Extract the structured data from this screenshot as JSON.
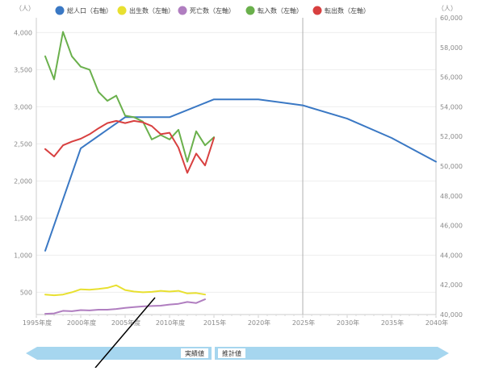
{
  "chart_data": {
    "type": "line",
    "left_axis": {
      "unit": "（人）",
      "ylim": [
        200,
        4200
      ],
      "ticks": [
        "500",
        "1,000",
        "1,500",
        "2,000",
        "2,500",
        "3,000",
        "3,500",
        "4,000"
      ]
    },
    "right_axis": {
      "unit": "（人）",
      "ylim": [
        40000,
        60000
      ],
      "ticks": [
        "40,000",
        "42,000",
        "44,000",
        "46,000",
        "48,000",
        "50,000",
        "52,000",
        "54,000",
        "56,000",
        "58,000",
        "60,000"
      ]
    },
    "x_axis": {
      "range": [
        1995,
        2040
      ],
      "ticks": [
        {
          "year": 1995,
          "label": "1995年度"
        },
        {
          "year": 2000,
          "label": "2000年度"
        },
        {
          "year": 2005,
          "label": "2005年度"
        },
        {
          "year": 2010,
          "label": "2010年度"
        },
        {
          "year": 2015,
          "label": "2015年"
        },
        {
          "year": 2020,
          "label": "2020年"
        },
        {
          "year": 2025,
          "label": "2025年"
        },
        {
          "year": 2030,
          "label": "2030年"
        },
        {
          "year": 2035,
          "label": "2035年"
        },
        {
          "year": 2040,
          "label": "2040年"
        }
      ]
    },
    "divider_year": 2025,
    "legend_position": "top",
    "series": [
      {
        "name": "総人口（右軸）",
        "axis": "right",
        "color": "#3a78c4",
        "points": [
          [
            1996,
            44300
          ],
          [
            2000,
            51200
          ],
          [
            2005,
            53300
          ],
          [
            2010,
            53300
          ],
          [
            2015,
            54500
          ],
          [
            2020,
            54500
          ],
          [
            2025,
            54100
          ],
          [
            2030,
            53200
          ],
          [
            2035,
            51900
          ],
          [
            2040,
            50300
          ]
        ]
      },
      {
        "name": "出生数（左軸）",
        "axis": "left",
        "color": "#e8e030",
        "points": [
          [
            1996,
            470
          ],
          [
            1997,
            460
          ],
          [
            1998,
            470
          ],
          [
            1999,
            500
          ],
          [
            2000,
            540
          ],
          [
            2001,
            535
          ],
          [
            2002,
            545
          ],
          [
            2003,
            560
          ],
          [
            2004,
            595
          ],
          [
            2005,
            530
          ],
          [
            2006,
            510
          ],
          [
            2007,
            500
          ],
          [
            2008,
            505
          ],
          [
            2009,
            520
          ],
          [
            2010,
            510
          ],
          [
            2011,
            520
          ],
          [
            2012,
            485
          ],
          [
            2013,
            490
          ],
          [
            2014,
            470
          ]
        ]
      },
      {
        "name": "死亡数（左軸）",
        "axis": "left",
        "color": "#b07ec0",
        "points": [
          [
            1996,
            210
          ],
          [
            1997,
            215
          ],
          [
            1998,
            250
          ],
          [
            1999,
            245
          ],
          [
            2000,
            260
          ],
          [
            2001,
            255
          ],
          [
            2002,
            265
          ],
          [
            2003,
            265
          ],
          [
            2004,
            275
          ],
          [
            2005,
            290
          ],
          [
            2006,
            300
          ],
          [
            2007,
            310
          ],
          [
            2008,
            315
          ],
          [
            2009,
            320
          ],
          [
            2010,
            335
          ],
          [
            2011,
            345
          ],
          [
            2012,
            370
          ],
          [
            2013,
            355
          ],
          [
            2014,
            405
          ]
        ]
      },
      {
        "name": "転入数（左軸）",
        "axis": "left",
        "color": "#6ab04c",
        "points": [
          [
            1996,
            3680
          ],
          [
            1997,
            3370
          ],
          [
            1998,
            4010
          ],
          [
            1999,
            3680
          ],
          [
            2000,
            3540
          ],
          [
            2001,
            3500
          ],
          [
            2002,
            3200
          ],
          [
            2003,
            3080
          ],
          [
            2004,
            3150
          ],
          [
            2005,
            2880
          ],
          [
            2006,
            2860
          ],
          [
            2007,
            2800
          ],
          [
            2008,
            2560
          ],
          [
            2009,
            2620
          ],
          [
            2010,
            2560
          ],
          [
            2011,
            2690
          ],
          [
            2012,
            2260
          ],
          [
            2013,
            2670
          ],
          [
            2014,
            2480
          ],
          [
            2015,
            2590
          ]
        ]
      },
      {
        "name": "転出数（左軸）",
        "axis": "left",
        "color": "#d84040",
        "points": [
          [
            1996,
            2430
          ],
          [
            1997,
            2330
          ],
          [
            1998,
            2480
          ],
          [
            1999,
            2530
          ],
          [
            2000,
            2570
          ],
          [
            2001,
            2630
          ],
          [
            2002,
            2710
          ],
          [
            2003,
            2780
          ],
          [
            2004,
            2810
          ],
          [
            2005,
            2780
          ],
          [
            2006,
            2810
          ],
          [
            2007,
            2790
          ],
          [
            2008,
            2740
          ],
          [
            2009,
            2630
          ],
          [
            2010,
            2650
          ],
          [
            2011,
            2450
          ],
          [
            2012,
            2110
          ],
          [
            2013,
            2370
          ],
          [
            2014,
            2210
          ],
          [
            2015,
            2580
          ]
        ]
      }
    ],
    "period_labels": {
      "actual": "実績値",
      "projected": "推計値"
    }
  }
}
